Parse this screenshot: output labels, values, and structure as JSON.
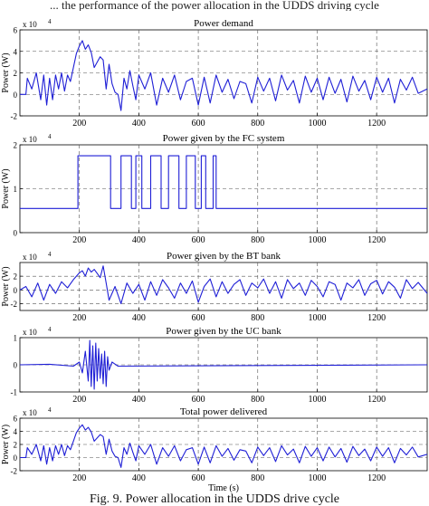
{
  "header_caption": "... the performance of the power allocation in the UDDS driving cycle",
  "caption": "Fig. 9. Power allocation in the UDDS drive cycle",
  "line_color": "#1f1fd6",
  "chart_data": [
    {
      "type": "line",
      "title": "Power demand",
      "ylabel": "Power (W)",
      "xlabel": "",
      "exponent": "x 10",
      "exponent_power": "4",
      "xlim": [
        0,
        1370
      ],
      "ylim": [
        -2,
        6
      ],
      "xticks": [
        "200",
        "400",
        "600",
        "800",
        "1000",
        "1200"
      ],
      "yticks": [
        "-2",
        "0",
        "2",
        "4",
        "6"
      ],
      "grid": true,
      "x": [
        0,
        20,
        25,
        40,
        55,
        70,
        80,
        90,
        100,
        110,
        120,
        130,
        140,
        150,
        160,
        170,
        180,
        190,
        200,
        210,
        220,
        230,
        240,
        250,
        260,
        270,
        280,
        290,
        300,
        310,
        320,
        330,
        340,
        350,
        360,
        370,
        380,
        390,
        400,
        420,
        440,
        460,
        480,
        500,
        520,
        540,
        560,
        580,
        600,
        620,
        640,
        660,
        680,
        700,
        720,
        740,
        760,
        780,
        800,
        820,
        840,
        860,
        880,
        900,
        920,
        940,
        960,
        980,
        1000,
        1020,
        1040,
        1060,
        1080,
        1100,
        1120,
        1140,
        1160,
        1180,
        1200,
        1220,
        1240,
        1260,
        1280,
        1300,
        1320,
        1340,
        1370
      ],
      "y": [
        0,
        0,
        1.5,
        0.5,
        2.0,
        -0.5,
        1.8,
        -1.0,
        1.5,
        -0.5,
        1.8,
        0.5,
        2.0,
        0.3,
        1.8,
        1.2,
        2.5,
        3.8,
        4.5,
        5.0,
        4.2,
        4.6,
        3.9,
        2.5,
        3.0,
        3.5,
        3.2,
        0.5,
        2.8,
        1.0,
        0.2,
        0,
        -1.5,
        1.5,
        0.5,
        2.2,
        0.8,
        -0.5,
        1.8,
        0.5,
        2.0,
        -1.0,
        1.5,
        0.2,
        1.8,
        -0.5,
        1.2,
        1.5,
        -1.0,
        1.6,
        -0.8,
        1.8,
        0.2,
        1.4,
        -0.4,
        1.2,
        1.0,
        -0.8,
        1.6,
        0.3,
        1.5,
        -0.6,
        1.8,
        0.4,
        1.3,
        -0.8,
        1.7,
        0.2,
        1.5,
        -0.5,
        1.6,
        0.1,
        1.4,
        -0.7,
        1.7,
        0.3,
        1.3,
        -0.5,
        1.6,
        0.2,
        1.5,
        -0.8,
        1.4,
        0.4,
        1.6,
        0.1,
        0.5
      ]
    },
    {
      "type": "line",
      "title": "Power given by the FC system",
      "ylabel": "Power (W)",
      "xlabel": "",
      "exponent": "x 10",
      "exponent_power": "4",
      "xlim": [
        0,
        1370
      ],
      "ylim": [
        0,
        2
      ],
      "xticks": [
        "200",
        "400",
        "600",
        "800",
        "1000",
        "1200"
      ],
      "yticks": [
        "0",
        "1",
        "2"
      ],
      "grid": true,
      "x": [
        0,
        195,
        195,
        305,
        305,
        340,
        340,
        375,
        375,
        390,
        390,
        410,
        410,
        440,
        440,
        475,
        475,
        500,
        500,
        535,
        535,
        560,
        560,
        590,
        590,
        610,
        610,
        625,
        625,
        650,
        650,
        660,
        660,
        1370
      ],
      "y": [
        0.55,
        0.55,
        1.75,
        1.75,
        0.55,
        0.55,
        1.75,
        1.75,
        0.55,
        0.55,
        1.75,
        1.75,
        0.55,
        0.55,
        1.75,
        1.75,
        0.55,
        0.55,
        1.75,
        1.75,
        0.55,
        0.55,
        1.75,
        1.75,
        0.55,
        0.55,
        1.75,
        1.75,
        0.55,
        0.55,
        1.75,
        1.75,
        0.55,
        0.55
      ]
    },
    {
      "type": "line",
      "title": "Power given by the BT bank",
      "ylabel": "Power (W)",
      "xlabel": "",
      "exponent": "x 10",
      "exponent_power": "4",
      "xlim": [
        0,
        1370
      ],
      "ylim": [
        -3,
        4
      ],
      "xticks": [
        "200",
        "400",
        "600",
        "800",
        "1000",
        "1200"
      ],
      "yticks": [
        "-2",
        "0",
        "2"
      ],
      "grid": true,
      "x": [
        0,
        20,
        40,
        60,
        80,
        100,
        120,
        140,
        160,
        180,
        200,
        210,
        220,
        230,
        240,
        250,
        260,
        270,
        280,
        290,
        300,
        320,
        340,
        360,
        380,
        400,
        420,
        440,
        460,
        480,
        500,
        520,
        540,
        560,
        580,
        600,
        620,
        640,
        660,
        680,
        700,
        720,
        740,
        760,
        780,
        800,
        820,
        840,
        860,
        880,
        900,
        920,
        940,
        960,
        980,
        1000,
        1020,
        1040,
        1060,
        1080,
        1100,
        1120,
        1140,
        1160,
        1180,
        1200,
        1220,
        1240,
        1260,
        1280,
        1300,
        1320,
        1340,
        1370
      ],
      "y": [
        0,
        0.5,
        -1.0,
        1.0,
        -1.5,
        0.8,
        -0.5,
        1.2,
        0.3,
        1.5,
        2.5,
        2.8,
        2.0,
        3.2,
        2.6,
        3.0,
        2.4,
        1.8,
        3.5,
        1.0,
        -1.5,
        0.5,
        -2.0,
        1.0,
        -0.5,
        0.8,
        -1.5,
        1.2,
        -0.8,
        1.5,
        0.3,
        -1.2,
        1.0,
        -0.5,
        1.3,
        -1.8,
        0.5,
        1.6,
        -1.0,
        1.2,
        -0.5,
        0.8,
        1.5,
        -0.8,
        1.0,
        0.3,
        1.6,
        -0.5,
        1.2,
        -1.2,
        1.5,
        0.2,
        1.0,
        -0.8,
        1.4,
        0.5,
        -1.0,
        1.2,
        0.8,
        -1.5,
        1.0,
        0.3,
        1.5,
        -0.8,
        0.9,
        1.4,
        -0.6,
        1.2,
        0.4,
        -1.2,
        1.5,
        0.2,
        1.1,
        -0.5
      ]
    },
    {
      "type": "line",
      "title": "Power given by the UC bank",
      "ylabel": "",
      "xlabel": "",
      "exponent": "x 10",
      "exponent_power": "4",
      "xlim": [
        0,
        1370
      ],
      "ylim": [
        -1,
        1
      ],
      "xticks": [
        "200",
        "400",
        "600",
        "800",
        "1000",
        "1200"
      ],
      "yticks": [
        "-1",
        "0",
        "1"
      ],
      "grid": true,
      "x": [
        0,
        100,
        180,
        200,
        210,
        220,
        230,
        235,
        240,
        245,
        250,
        255,
        260,
        265,
        270,
        275,
        280,
        285,
        290,
        295,
        300,
        310,
        330,
        1370
      ],
      "y": [
        0,
        0.02,
        -0.05,
        0.1,
        -0.3,
        0.5,
        -0.6,
        0.9,
        -0.8,
        0.7,
        -0.9,
        0.8,
        -0.6,
        0.6,
        -0.5,
        0.4,
        -0.7,
        0.5,
        -0.8,
        0.3,
        -0.2,
        0.1,
        -0.05,
        0
      ]
    },
    {
      "type": "line",
      "title": "Total power delivered",
      "ylabel": "Power (W)",
      "xlabel": "Time (s)",
      "exponent": "x 10",
      "exponent_power": "4",
      "xlim": [
        0,
        1370
      ],
      "ylim": [
        -2,
        6
      ],
      "xticks": [
        "200",
        "400",
        "600",
        "800",
        "1000",
        "1200"
      ],
      "yticks": [
        "-2",
        "0",
        "2",
        "4",
        "6"
      ],
      "grid": true,
      "x": [
        0,
        20,
        25,
        40,
        55,
        70,
        80,
        90,
        100,
        110,
        120,
        130,
        140,
        150,
        160,
        170,
        180,
        190,
        200,
        210,
        220,
        230,
        240,
        250,
        260,
        270,
        280,
        290,
        300,
        310,
        320,
        330,
        340,
        350,
        360,
        370,
        380,
        390,
        400,
        420,
        440,
        460,
        480,
        500,
        520,
        540,
        560,
        580,
        600,
        620,
        640,
        660,
        680,
        700,
        720,
        740,
        760,
        780,
        800,
        820,
        840,
        860,
        880,
        900,
        920,
        940,
        960,
        980,
        1000,
        1020,
        1040,
        1060,
        1080,
        1100,
        1120,
        1140,
        1160,
        1180,
        1200,
        1220,
        1240,
        1260,
        1280,
        1300,
        1320,
        1340,
        1370
      ],
      "y": [
        0,
        0,
        1.5,
        0.5,
        2.0,
        -0.5,
        1.8,
        -1.0,
        1.5,
        -0.5,
        1.8,
        0.5,
        2.0,
        0.3,
        1.8,
        1.2,
        2.5,
        3.8,
        4.5,
        5.0,
        4.2,
        4.6,
        3.9,
        2.5,
        3.0,
        3.5,
        3.2,
        0.5,
        2.8,
        1.0,
        0.2,
        0,
        -1.5,
        1.5,
        0.5,
        2.2,
        0.8,
        -0.5,
        1.8,
        0.5,
        2.0,
        -1.0,
        1.5,
        0.2,
        1.8,
        -0.5,
        1.2,
        1.5,
        -1.0,
        1.6,
        -0.8,
        1.8,
        0.2,
        1.4,
        -0.4,
        1.2,
        1.0,
        -0.8,
        1.6,
        0.3,
        1.5,
        -0.6,
        1.8,
        0.4,
        1.3,
        -0.8,
        1.7,
        0.2,
        1.5,
        -0.5,
        1.6,
        0.1,
        1.4,
        -0.7,
        1.7,
        0.3,
        1.3,
        -0.5,
        1.6,
        0.2,
        1.5,
        -0.8,
        1.4,
        0.4,
        1.6,
        0.1,
        0.5
      ]
    }
  ]
}
